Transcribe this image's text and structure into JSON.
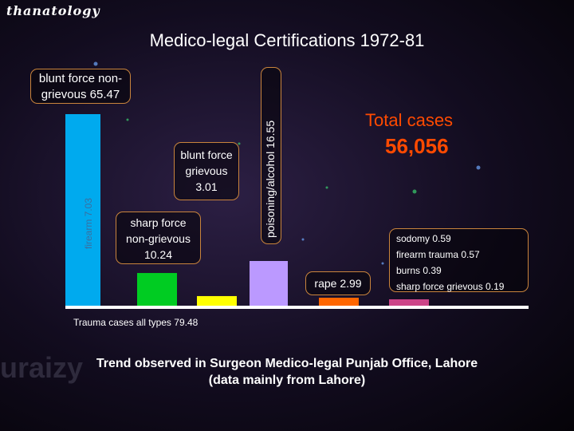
{
  "header_tag": "thanatology",
  "watermark": "uraizy",
  "chart_data": {
    "type": "bar",
    "title": "Medico-legal Certifications  1972-81",
    "xlabel": "",
    "ylabel": "",
    "ylim": [
      0,
      70
    ],
    "unit": "%",
    "total_label": "Total cases",
    "total_value": "56,056",
    "trauma_note": "Trauma cases all types   79.48",
    "categories": [
      "blunt force non-grievous",
      "firearm",
      "sharp force non-grievous",
      "blunt force grievous",
      "poisoning/alcohol",
      "rape",
      "other"
    ],
    "values": [
      65.47,
      7.03,
      10.24,
      3.01,
      16.55,
      2.99,
      1.74
    ],
    "colors": [
      "#00aaee",
      "#00cc22",
      "#ffff00",
      "#bb99ff",
      "#ff6600",
      "#cc4488"
    ],
    "labels": {
      "blunt_nongrievous": "blunt force non-\ngrievous 65.47",
      "firearm": "firearm 7.03",
      "blunt_grievous": "blunt force\ngrievous\n3.01",
      "sharp_nongrievous": "sharp force\nnon-grievous\n10.24",
      "poisoning": "poisoning/alcohol  16.55",
      "rape": "rape  2.99",
      "other_list": "sodomy 0.59\nfirearm trauma 0.57\nburns 0.39\nsharp force grievous 0.19"
    }
  },
  "footer": {
    "line1": "Trend observed in Surgeon Medico-legal Punjab Office, Lahore",
    "line2": "(data mainly from Lahore)"
  }
}
